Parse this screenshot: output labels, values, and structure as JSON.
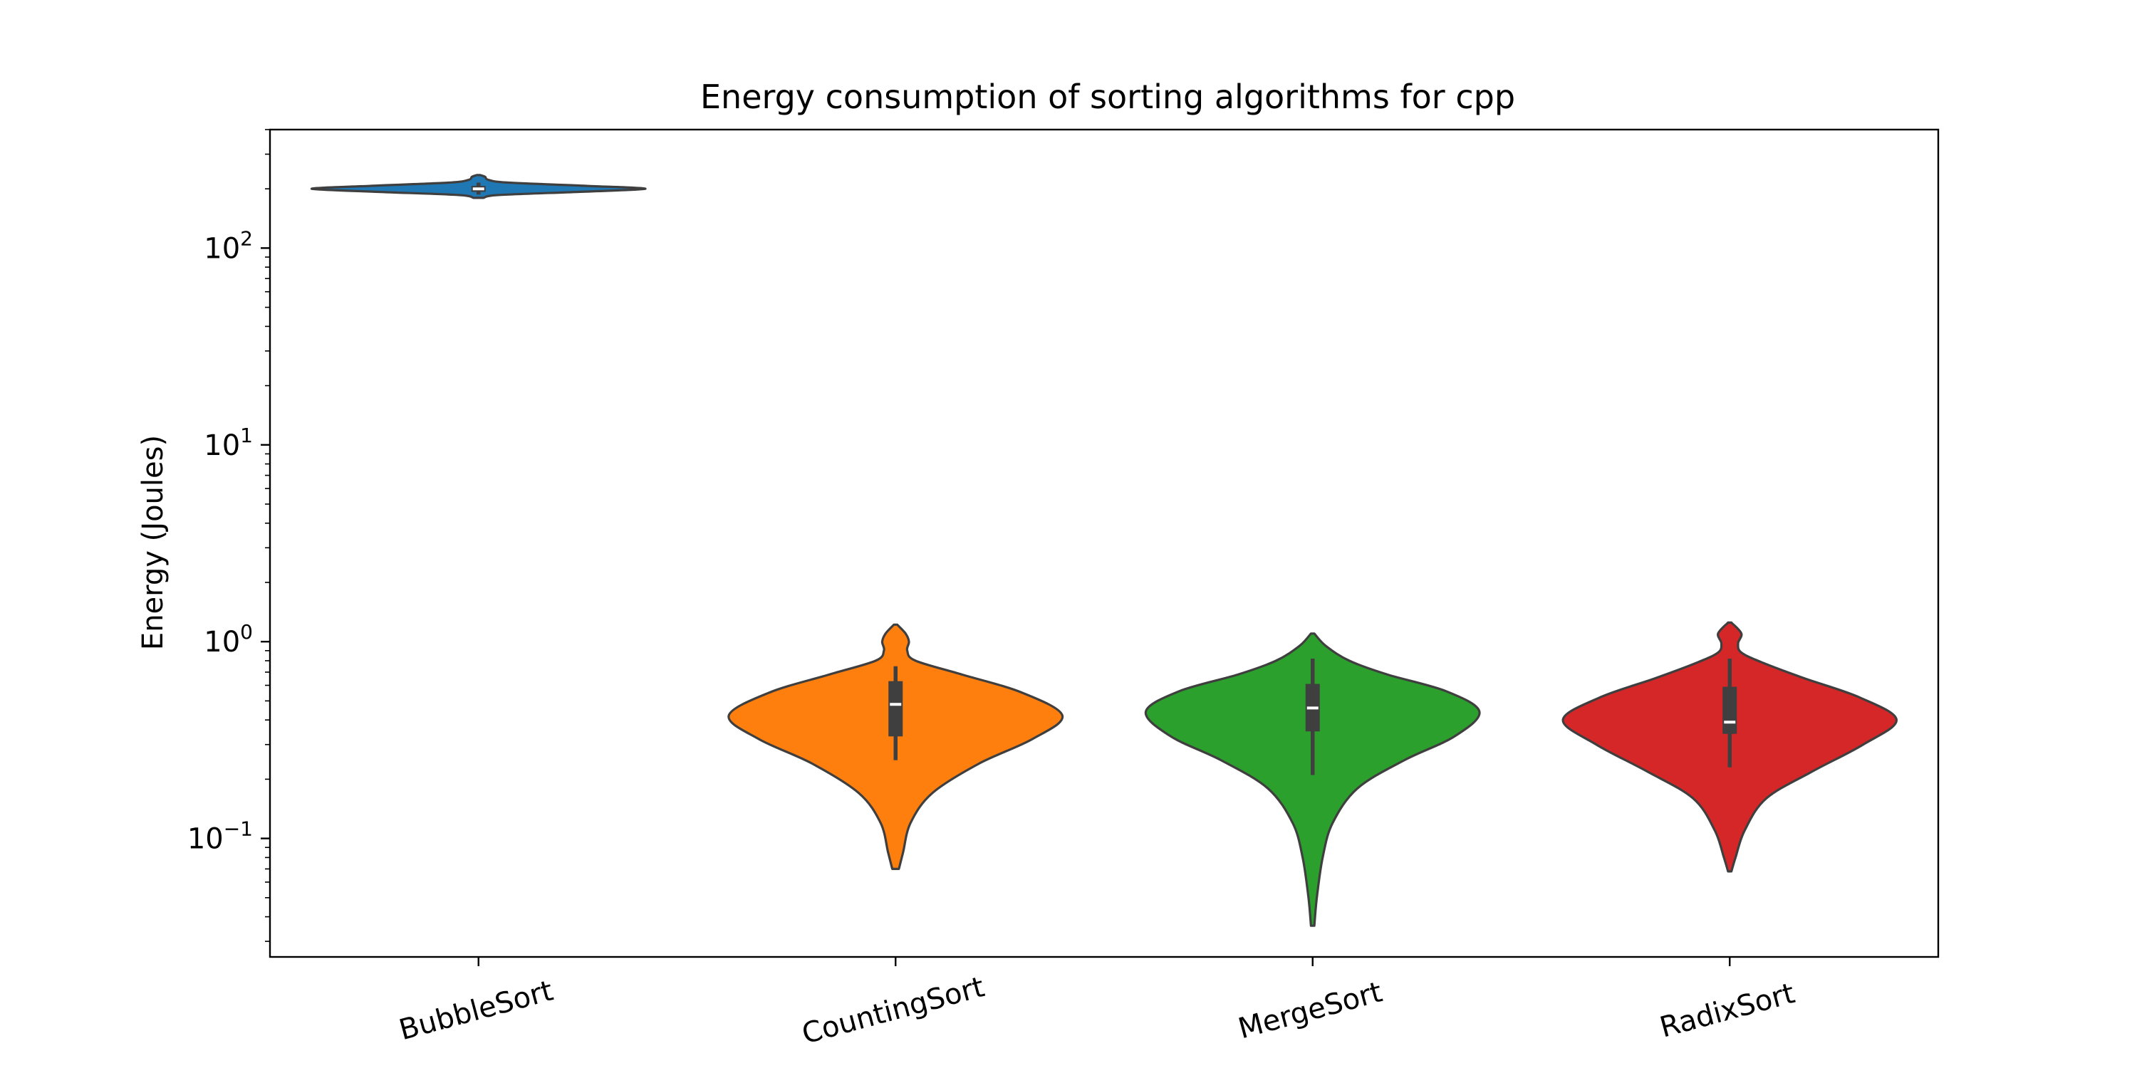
{
  "chart_data": {
    "type": "violin",
    "title": "Energy consumption of sorting algorithms for cpp",
    "xlabel": "",
    "ylabel": "Energy (Joules)",
    "yscale": "log",
    "ylim": [
      0.025,
      400
    ],
    "yticks": [
      {
        "base": "10",
        "exp": "2",
        "value": 100
      },
      {
        "base": "10",
        "exp": "1",
        "value": 10
      },
      {
        "base": "10",
        "exp": "0",
        "value": 1
      },
      {
        "base": "10",
        "exp": "−1",
        "value": 0.1
      }
    ],
    "grid": false,
    "legend": "none",
    "categories": [
      "BubbleSort",
      "CountingSort",
      "MergeSort",
      "RadixSort"
    ],
    "violins": [
      {
        "category": "BubbleSort",
        "color": "#1f77b4",
        "min": 180,
        "q1": 193,
        "median": 200,
        "q3": 207,
        "max": 235,
        "whisker_low": 187,
        "whisker_high": 215,
        "profile": [
          [
            180,
            0.03
          ],
          [
            186,
            0.12
          ],
          [
            193,
            0.6
          ],
          [
            200,
            1.0
          ],
          [
            207,
            0.65
          ],
          [
            215,
            0.18
          ],
          [
            222,
            0.06
          ],
          [
            230,
            0.04
          ],
          [
            235,
            0.01
          ]
        ]
      },
      {
        "category": "CountingSort",
        "color": "#ff7f0e",
        "min": 0.07,
        "q1": 0.33,
        "median": 0.48,
        "q3": 0.63,
        "max": 1.22,
        "whisker_low": 0.25,
        "whisker_high": 0.75,
        "profile": [
          [
            0.07,
            0.02
          ],
          [
            0.085,
            0.045
          ],
          [
            0.12,
            0.09
          ],
          [
            0.17,
            0.22
          ],
          [
            0.24,
            0.5
          ],
          [
            0.32,
            0.82
          ],
          [
            0.42,
            1.0
          ],
          [
            0.55,
            0.76
          ],
          [
            0.68,
            0.4
          ],
          [
            0.8,
            0.12
          ],
          [
            0.9,
            0.07
          ],
          [
            1.0,
            0.08
          ],
          [
            1.1,
            0.06
          ],
          [
            1.22,
            0.01
          ]
        ]
      },
      {
        "category": "MergeSort",
        "color": "#2ca02c",
        "min": 0.036,
        "q1": 0.35,
        "median": 0.46,
        "q3": 0.61,
        "max": 1.1,
        "whisker_low": 0.21,
        "whisker_high": 0.82,
        "profile": [
          [
            0.036,
            0.01
          ],
          [
            0.05,
            0.025
          ],
          [
            0.08,
            0.06
          ],
          [
            0.12,
            0.12
          ],
          [
            0.18,
            0.27
          ],
          [
            0.25,
            0.55
          ],
          [
            0.33,
            0.85
          ],
          [
            0.44,
            1.0
          ],
          [
            0.56,
            0.8
          ],
          [
            0.68,
            0.45
          ],
          [
            0.8,
            0.22
          ],
          [
            0.95,
            0.08
          ],
          [
            1.1,
            0.01
          ]
        ]
      },
      {
        "category": "RadixSort",
        "color": "#d62728",
        "min": 0.068,
        "q1": 0.34,
        "median": 0.39,
        "q3": 0.59,
        "max": 1.25,
        "whisker_low": 0.23,
        "whisker_high": 0.82,
        "profile": [
          [
            0.068,
            0.01
          ],
          [
            0.08,
            0.035
          ],
          [
            0.11,
            0.09
          ],
          [
            0.16,
            0.22
          ],
          [
            0.22,
            0.5
          ],
          [
            0.3,
            0.8
          ],
          [
            0.4,
            1.0
          ],
          [
            0.52,
            0.78
          ],
          [
            0.65,
            0.45
          ],
          [
            0.78,
            0.2
          ],
          [
            0.88,
            0.07
          ],
          [
            0.98,
            0.05
          ],
          [
            1.1,
            0.07
          ],
          [
            1.25,
            0.01
          ]
        ]
      }
    ]
  }
}
